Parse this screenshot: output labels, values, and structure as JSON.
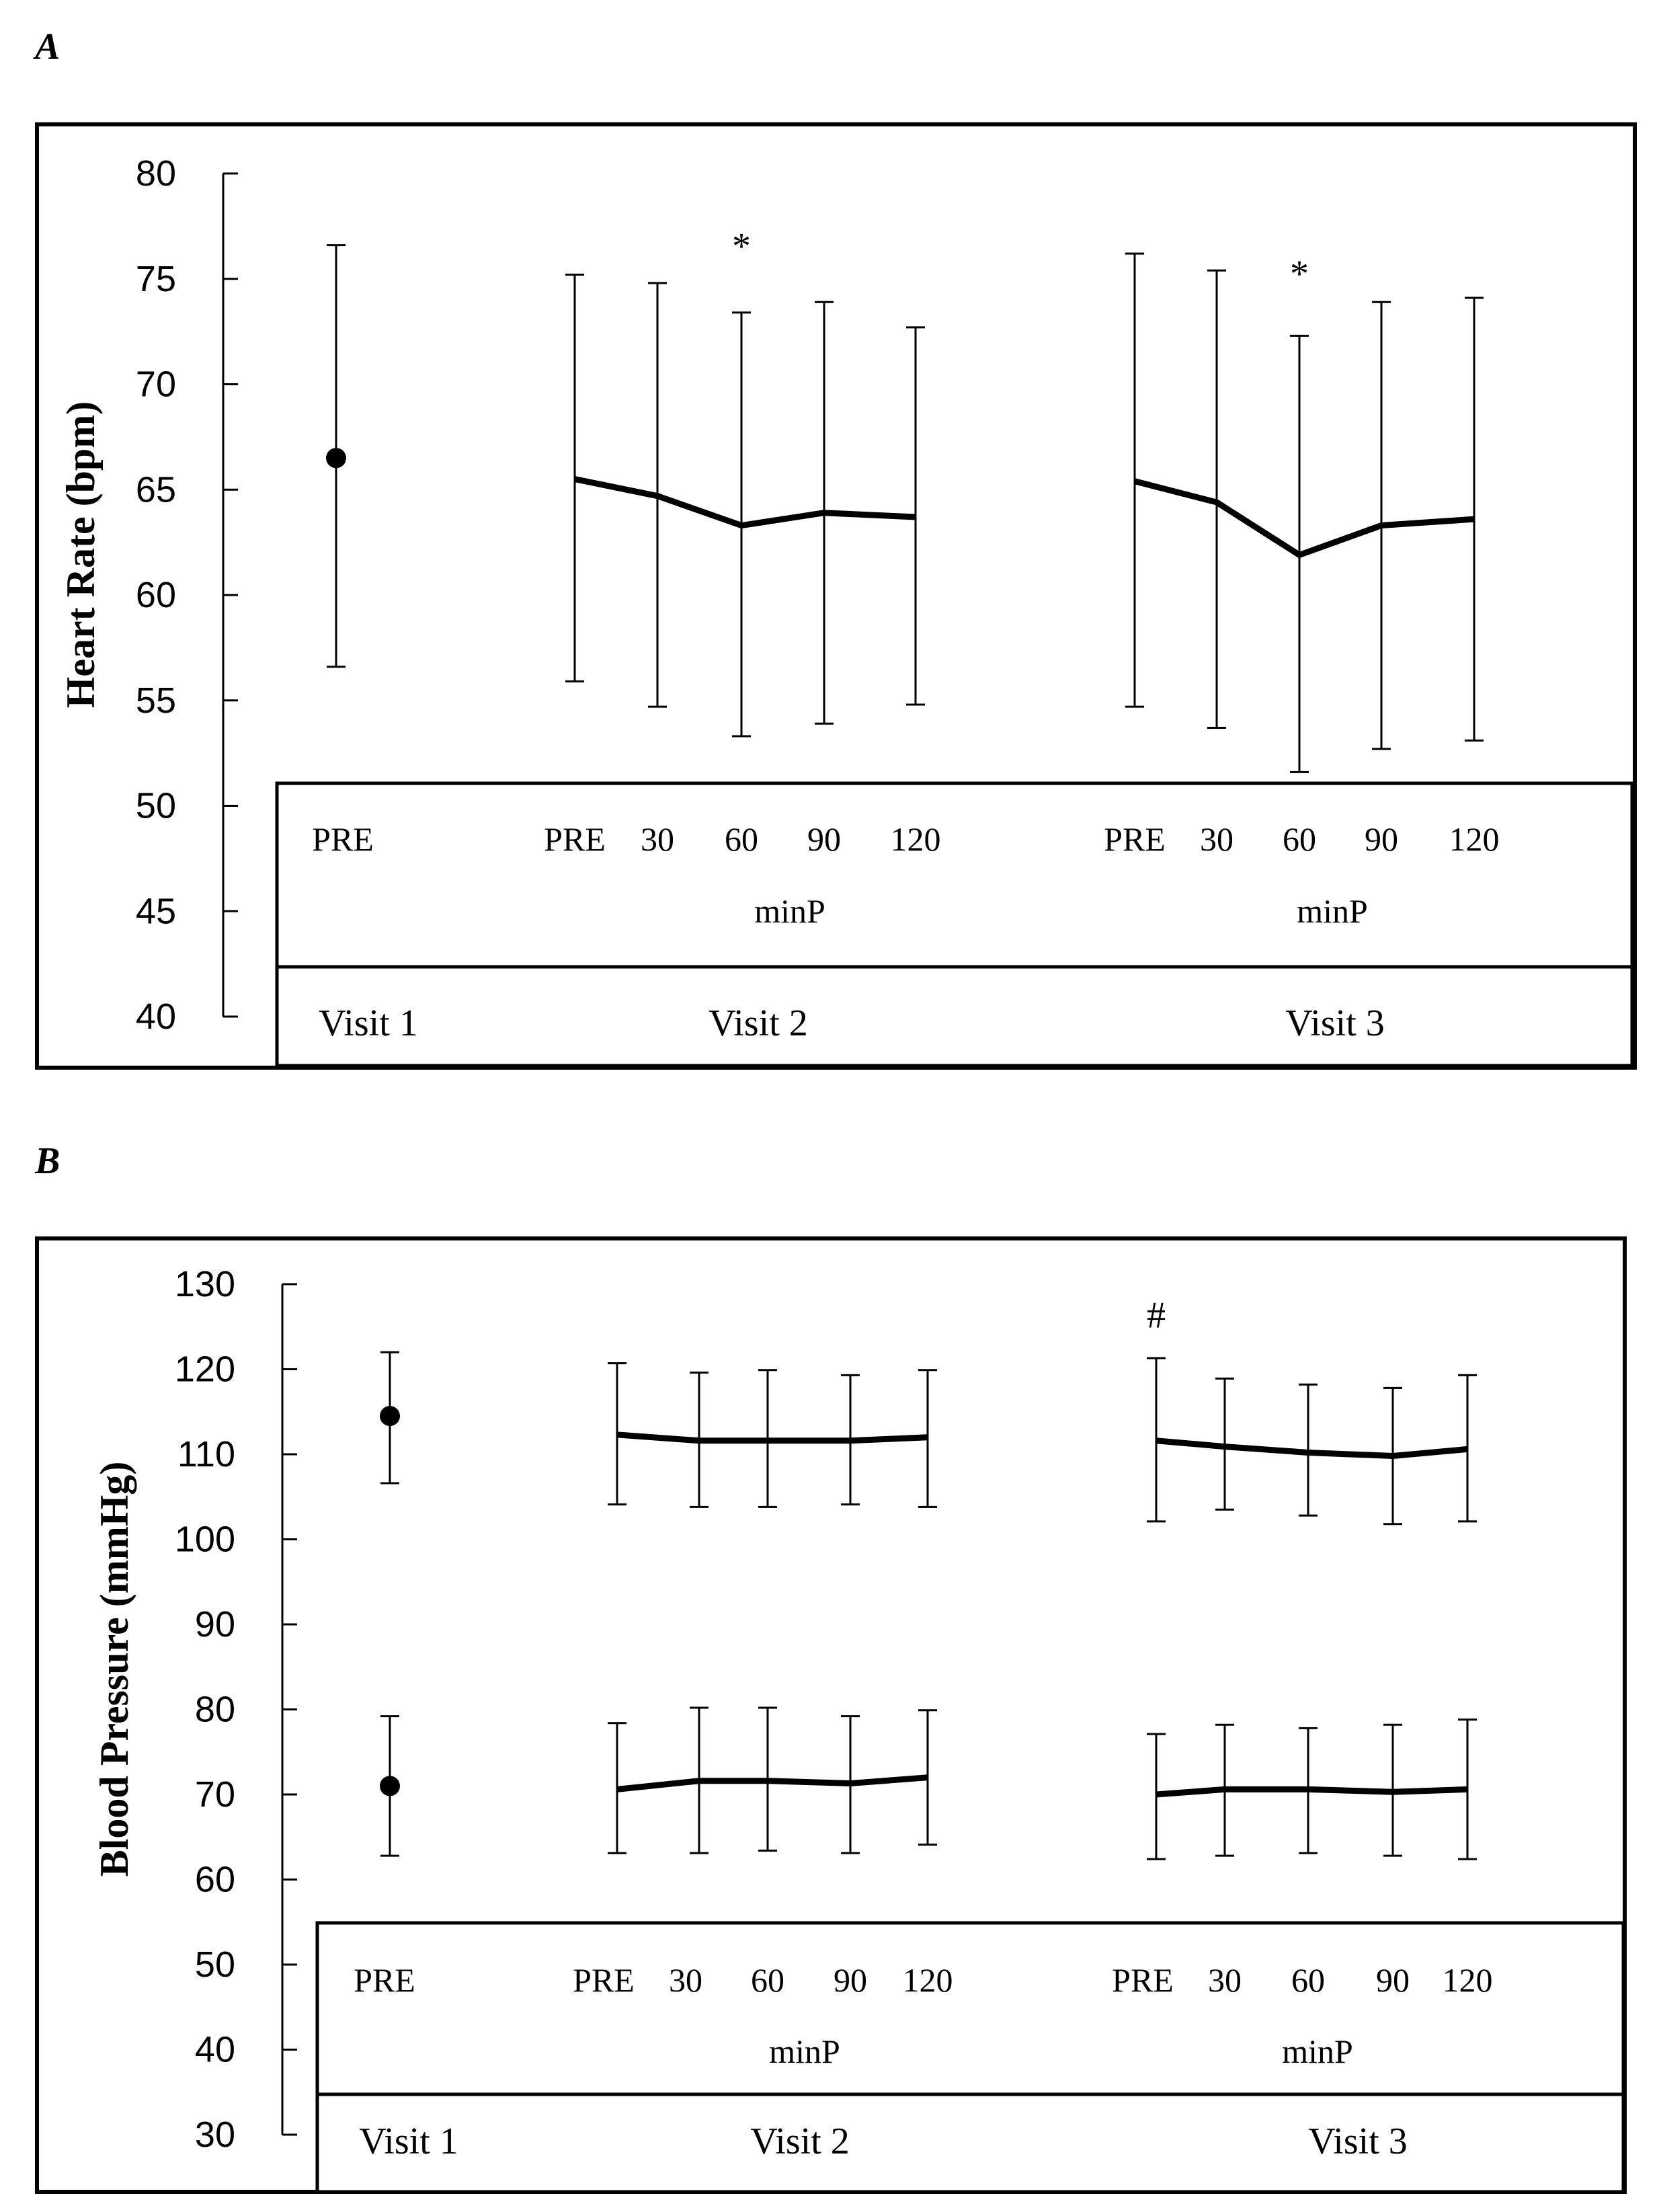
{
  "chart_data": [
    {
      "panel": "A",
      "type": "line",
      "ylabel": "Heart Rate (bpm)",
      "ylim": [
        40,
        80
      ],
      "yticks": [
        40,
        45,
        50,
        55,
        60,
        65,
        70,
        75,
        80
      ],
      "visits": [
        "Visit 1",
        "Visit 2",
        "Visit 3"
      ],
      "categories": [
        "PRE",
        "PRE",
        "30",
        "60",
        "90",
        "120",
        "PRE",
        "30",
        "60",
        "90",
        "120"
      ],
      "minP_label": "minP",
      "series": [
        {
          "points": [
            {
              "visit": "Visit 1",
              "x": "PRE",
              "y": 66.5,
              "err": [
                56.6,
                76.6
              ]
            }
          ],
          "connect": false
        },
        {
          "points": [
            {
              "visit": "Visit 2",
              "x": "PRE",
              "y": 65.5,
              "err": [
                55.9,
                75.2
              ]
            },
            {
              "visit": "Visit 2",
              "x": "30",
              "y": 64.7,
              "err": [
                54.7,
                74.8
              ]
            },
            {
              "visit": "Visit 2",
              "x": "60",
              "y": 63.3,
              "err": [
                53.3,
                73.4
              ]
            },
            {
              "visit": "Visit 2",
              "x": "90",
              "y": 63.9,
              "err": [
                53.9,
                73.9
              ]
            },
            {
              "visit": "Visit 2",
              "x": "120",
              "y": 63.7,
              "err": [
                54.8,
                72.7
              ]
            }
          ],
          "connect": true
        },
        {
          "points": [
            {
              "visit": "Visit 3",
              "x": "PRE",
              "y": 65.4,
              "err": [
                54.7,
                76.2
              ]
            },
            {
              "visit": "Visit 3",
              "x": "30",
              "y": 64.4,
              "err": [
                53.7,
                75.4
              ]
            },
            {
              "visit": "Visit 3",
              "x": "60",
              "y": 61.9,
              "err": [
                51.6,
                72.3
              ]
            },
            {
              "visit": "Visit 3",
              "x": "90",
              "y": 63.3,
              "err": [
                52.7,
                73.9
              ]
            },
            {
              "visit": "Visit 3",
              "x": "120",
              "y": 63.6,
              "err": [
                53.1,
                74.1
              ]
            }
          ],
          "connect": true
        }
      ],
      "annotations": [
        {
          "text": "*",
          "visit": "Visit 2",
          "x": "60",
          "y": 76.6
        },
        {
          "text": "*",
          "visit": "Visit 3",
          "x": "60",
          "y": 75.3
        }
      ]
    },
    {
      "panel": "B",
      "type": "line",
      "ylabel": "Blood Pressure (mmHg)",
      "ylim": [
        30,
        130
      ],
      "yticks": [
        30,
        40,
        50,
        60,
        70,
        80,
        90,
        100,
        110,
        120,
        130
      ],
      "visits": [
        "Visit 1",
        "Visit 2",
        "Visit 3"
      ],
      "categories": [
        "PRE",
        "PRE",
        "30",
        "60",
        "90",
        "120",
        "PRE",
        "30",
        "60",
        "90",
        "120"
      ],
      "minP_label": "minP",
      "series": [
        {
          "points": [
            {
              "visit": "Visit 1",
              "x": "PRE",
              "y": 114.5,
              "err": [
                106.6,
                122.0
              ]
            }
          ],
          "connect": false
        },
        {
          "points": [
            {
              "visit": "Visit 2",
              "x": "PRE",
              "y": 112.3,
              "err": [
                104.1,
                120.7
              ]
            },
            {
              "visit": "Visit 2",
              "x": "30",
              "y": 111.6,
              "err": [
                103.8,
                119.6
              ]
            },
            {
              "visit": "Visit 2",
              "x": "60",
              "y": 111.6,
              "err": [
                103.8,
                119.9
              ]
            },
            {
              "visit": "Visit 2",
              "x": "90",
              "y": 111.6,
              "err": [
                104.1,
                119.3
              ]
            },
            {
              "visit": "Visit 2",
              "x": "120",
              "y": 112.0,
              "err": [
                103.8,
                119.9
              ]
            }
          ],
          "connect": true
        },
        {
          "points": [
            {
              "visit": "Visit 3",
              "x": "PRE",
              "y": 111.6,
              "err": [
                102.1,
                121.3
              ]
            },
            {
              "visit": "Visit 3",
              "x": "30",
              "y": 110.9,
              "err": [
                103.5,
                118.9
              ]
            },
            {
              "visit": "Visit 3",
              "x": "60",
              "y": 110.2,
              "err": [
                102.8,
                118.2
              ]
            },
            {
              "visit": "Visit 3",
              "x": "90",
              "y": 109.8,
              "err": [
                101.8,
                117.8
              ]
            },
            {
              "visit": "Visit 3",
              "x": "120",
              "y": 110.6,
              "err": [
                102.1,
                119.3
              ]
            }
          ],
          "connect": true
        },
        {
          "points": [
            {
              "visit": "Visit 1",
              "x": "PRE",
              "y": 71.0,
              "err": [
                62.8,
                79.2
              ]
            }
          ],
          "connect": false
        },
        {
          "points": [
            {
              "visit": "Visit 2",
              "x": "PRE",
              "y": 70.6,
              "err": [
                63.1,
                78.4
              ]
            },
            {
              "visit": "Visit 2",
              "x": "30",
              "y": 71.6,
              "err": [
                63.1,
                80.2
              ]
            },
            {
              "visit": "Visit 2",
              "x": "60",
              "y": 71.6,
              "err": [
                63.4,
                80.2
              ]
            },
            {
              "visit": "Visit 2",
              "x": "90",
              "y": 71.3,
              "err": [
                63.1,
                79.2
              ]
            },
            {
              "visit": "Visit 2",
              "x": "120",
              "y": 72.0,
              "err": [
                64.1,
                79.9
              ]
            }
          ],
          "connect": true
        },
        {
          "points": [
            {
              "visit": "Visit 3",
              "x": "PRE",
              "y": 70.0,
              "err": [
                62.4,
                77.1
              ]
            },
            {
              "visit": "Visit 3",
              "x": "30",
              "y": 70.6,
              "err": [
                62.8,
                78.2
              ]
            },
            {
              "visit": "Visit 3",
              "x": "60",
              "y": 70.6,
              "err": [
                63.1,
                77.8
              ]
            },
            {
              "visit": "Visit 3",
              "x": "90",
              "y": 70.3,
              "err": [
                62.8,
                78.2
              ]
            },
            {
              "visit": "Visit 3",
              "x": "120",
              "y": 70.6,
              "err": [
                62.4,
                78.8
              ]
            }
          ],
          "connect": true
        }
      ],
      "annotations": [
        {
          "text": "#",
          "visit": "Visit 3",
          "x": "PRE",
          "y": 126.5
        }
      ]
    }
  ]
}
